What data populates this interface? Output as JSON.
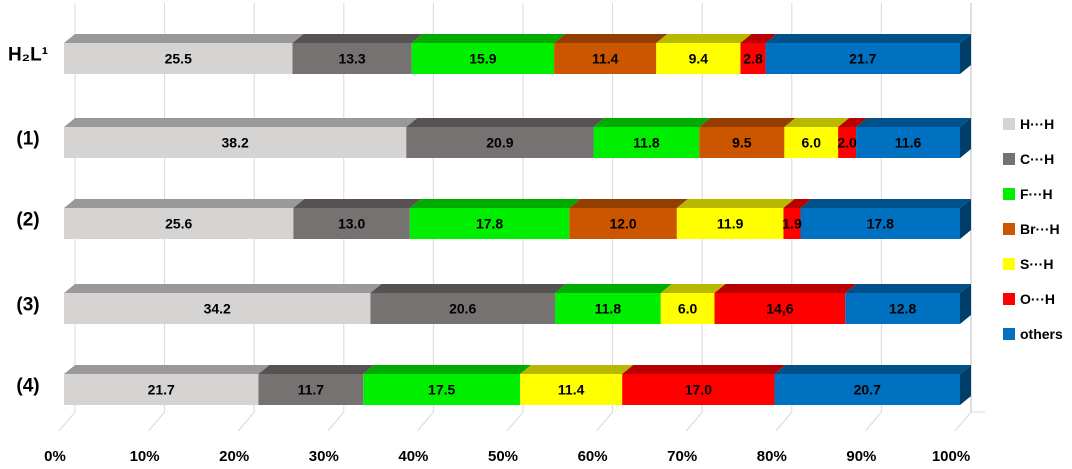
{
  "chart_data": {
    "type": "bar",
    "orientation": "horizontal",
    "stacked": "percent",
    "categories": [
      "H₂L¹",
      "(1)",
      "(2)",
      "(3)",
      "(4)"
    ],
    "series": [
      {
        "name": "H···H",
        "color": "#d6d3d3",
        "values": [
          25.5,
          38.2,
          25.6,
          34.2,
          21.7
        ],
        "labels": [
          "25.5",
          "38.2",
          "25.6",
          "34.2",
          "21.7"
        ]
      },
      {
        "name": "C···H",
        "color": "#777272",
        "values": [
          13.3,
          20.9,
          13.0,
          20.6,
          11.7
        ],
        "labels": [
          "13.3",
          "20.9",
          "13.0",
          "20.6",
          "11.7"
        ]
      },
      {
        "name": "F···H",
        "color": "#00ee00",
        "values": [
          15.9,
          11.8,
          17.8,
          11.8,
          17.5
        ],
        "labels": [
          "15.9",
          "11.8",
          "17.8",
          "11.8",
          "17.5"
        ]
      },
      {
        "name": "Br···H",
        "color": "#cc5500",
        "values": [
          11.4,
          9.5,
          12.0,
          0,
          0
        ],
        "labels": [
          "11.4",
          "9.5",
          "12.0",
          "",
          ""
        ]
      },
      {
        "name": "S···H",
        "color": "#ffff00",
        "values": [
          9.4,
          6.0,
          11.9,
          6.0,
          11.4
        ],
        "labels": [
          "9.4",
          "6.0",
          "11.9",
          "6.0",
          "11.4"
        ]
      },
      {
        "name": "O···H",
        "color": "#ff0000",
        "values": [
          2.8,
          2.0,
          1.9,
          14.6,
          17.0
        ],
        "labels": [
          "2.8",
          "2.0",
          "1.9",
          "14,6",
          "17.0"
        ]
      },
      {
        "name": "others",
        "color": "#0070c0",
        "values": [
          21.7,
          11.6,
          17.8,
          12.8,
          20.7
        ],
        "labels": [
          "21.7",
          "11.6",
          "17.8",
          "12.8",
          "20.7"
        ]
      }
    ],
    "xlim": [
      0,
      100
    ],
    "xticks": [
      "0%",
      "10%",
      "20%",
      "30%",
      "40%",
      "50%",
      "60%",
      "70%",
      "80%",
      "90%",
      "100%"
    ],
    "grid": true,
    "legend_position": "right"
  }
}
